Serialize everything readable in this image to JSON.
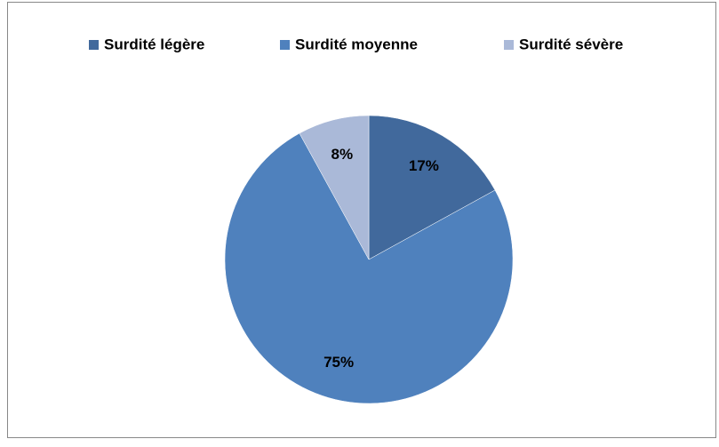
{
  "chart_data": {
    "type": "pie",
    "categories": [
      "Surdité légère",
      "Surdité moyenne",
      "Surdité sévère"
    ],
    "values": [
      17,
      75,
      8
    ],
    "value_labels": [
      "17%",
      "75%",
      "8%"
    ],
    "colors": [
      "#41699c",
      "#4f81bd",
      "#aab9d8"
    ],
    "legend": "top"
  }
}
